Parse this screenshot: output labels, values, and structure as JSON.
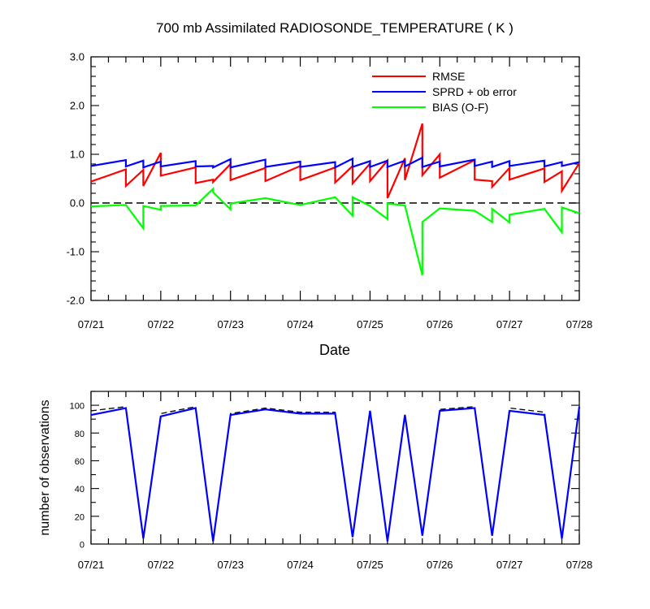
{
  "title": "700 mb Assimilated RADIOSONDE_TEMPERATURE ( K )",
  "colors": {
    "rmse": "#ff0000",
    "sprd": "#0000ff",
    "bias": "#00ff00",
    "obs_used": "#0000ff",
    "obs_possible": "#000000",
    "zero_line": "#000000"
  },
  "chart_data": [
    {
      "type": "line",
      "xlabel": "Date",
      "ylabel": "",
      "ylim": [
        -2.0,
        3.0
      ],
      "xlim": [
        0,
        7
      ],
      "x_tick_labels": [
        "07/21",
        "07/22",
        "07/23",
        "07/24",
        "07/25",
        "07/26",
        "07/27",
        "07/28"
      ],
      "y_tick_labels": [
        "-2.0",
        "-1.0",
        "0.0",
        "1.0",
        "2.0",
        "3.0"
      ],
      "legend_position": "top-right",
      "reference_line": {
        "y": 0.0,
        "style": "dashed"
      },
      "series": [
        {
          "name": "RMSE",
          "color": "#ff0000",
          "points": [
            [
              0,
              0.44
            ],
            [
              0.5,
              0.69
            ],
            [
              0.5,
              0.35
            ],
            [
              0.75,
              0.68
            ],
            [
              0.75,
              0.35
            ],
            [
              1.0,
              1.03
            ],
            [
              1.0,
              0.56
            ],
            [
              1.5,
              0.73
            ],
            [
              1.5,
              0.41
            ],
            [
              1.75,
              0.48
            ],
            [
              1.75,
              0.43
            ],
            [
              2.0,
              0.8
            ],
            [
              2.0,
              0.47
            ],
            [
              2.5,
              0.72
            ],
            [
              2.5,
              0.45
            ],
            [
              3.0,
              0.76
            ],
            [
              3.0,
              0.47
            ],
            [
              3.5,
              0.73
            ],
            [
              3.5,
              0.42
            ],
            [
              3.75,
              0.76
            ],
            [
              3.75,
              0.4
            ],
            [
              4.0,
              0.81
            ],
            [
              4.0,
              0.45
            ],
            [
              4.25,
              0.87
            ],
            [
              4.25,
              0.1
            ],
            [
              4.5,
              0.92
            ],
            [
              4.5,
              0.47
            ],
            [
              4.75,
              1.63
            ],
            [
              4.75,
              0.57
            ],
            [
              5.0,
              1.0
            ],
            [
              5.0,
              0.52
            ],
            [
              5.5,
              0.88
            ],
            [
              5.5,
              0.48
            ],
            [
              5.75,
              0.45
            ],
            [
              5.75,
              0.33
            ],
            [
              6.0,
              0.72
            ],
            [
              6.0,
              0.48
            ],
            [
              6.5,
              0.71
            ],
            [
              6.5,
              0.43
            ],
            [
              6.75,
              0.65
            ],
            [
              6.75,
              0.25
            ],
            [
              7.0,
              0.82
            ]
          ]
        },
        {
          "name": "SPRD + ob error",
          "color": "#0000ff",
          "points": [
            [
              0,
              0.76
            ],
            [
              0.5,
              0.88
            ],
            [
              0.5,
              0.75
            ],
            [
              0.75,
              0.87
            ],
            [
              0.75,
              0.73
            ],
            [
              1.0,
              0.85
            ],
            [
              1.0,
              0.75
            ],
            [
              1.5,
              0.86
            ],
            [
              1.5,
              0.75
            ],
            [
              1.75,
              0.76
            ],
            [
              1.75,
              0.73
            ],
            [
              2.0,
              0.9
            ],
            [
              2.0,
              0.73
            ],
            [
              2.5,
              0.89
            ],
            [
              2.5,
              0.74
            ],
            [
              3.0,
              0.85
            ],
            [
              3.0,
              0.74
            ],
            [
              3.5,
              0.84
            ],
            [
              3.5,
              0.73
            ],
            [
              3.75,
              0.91
            ],
            [
              3.75,
              0.74
            ],
            [
              4.0,
              0.86
            ],
            [
              4.0,
              0.74
            ],
            [
              4.25,
              0.87
            ],
            [
              4.25,
              0.74
            ],
            [
              4.5,
              0.87
            ],
            [
              4.5,
              0.75
            ],
            [
              4.75,
              0.93
            ],
            [
              4.75,
              0.74
            ],
            [
              5.0,
              0.85
            ],
            [
              5.0,
              0.75
            ],
            [
              5.5,
              0.89
            ],
            [
              5.5,
              0.76
            ],
            [
              5.75,
              0.85
            ],
            [
              5.75,
              0.74
            ],
            [
              6.0,
              0.86
            ],
            [
              6.0,
              0.76
            ],
            [
              6.5,
              0.87
            ],
            [
              6.5,
              0.75
            ],
            [
              6.75,
              0.84
            ],
            [
              6.75,
              0.76
            ],
            [
              7.0,
              0.84
            ]
          ]
        },
        {
          "name": "BIAS (O-F)",
          "color": "#00ff00",
          "points": [
            [
              0,
              -0.07
            ],
            [
              0.5,
              -0.04
            ],
            [
              0.75,
              -0.52
            ],
            [
              0.75,
              -0.06
            ],
            [
              1.0,
              -0.14
            ],
            [
              1.0,
              -0.06
            ],
            [
              1.5,
              -0.05
            ],
            [
              1.75,
              0.29
            ],
            [
              1.75,
              0.22
            ],
            [
              2.0,
              -0.13
            ],
            [
              2.0,
              -0.01
            ],
            [
              2.5,
              0.1
            ],
            [
              3.0,
              -0.04
            ],
            [
              3.5,
              0.12
            ],
            [
              3.75,
              -0.26
            ],
            [
              3.75,
              0.12
            ],
            [
              4.0,
              -0.06
            ],
            [
              4.25,
              -0.33
            ],
            [
              4.25,
              -0.01
            ],
            [
              4.5,
              -0.05
            ],
            [
              4.75,
              -1.48
            ],
            [
              4.75,
              -0.39
            ],
            [
              5.0,
              -0.11
            ],
            [
              5.5,
              -0.16
            ],
            [
              5.75,
              -0.39
            ],
            [
              5.75,
              -0.12
            ],
            [
              6.0,
              -0.4
            ],
            [
              6.0,
              -0.24
            ],
            [
              6.5,
              -0.12
            ],
            [
              6.75,
              -0.6
            ],
            [
              6.75,
              -0.09
            ],
            [
              7.0,
              -0.21
            ]
          ]
        }
      ]
    },
    {
      "type": "line",
      "xlabel": "",
      "ylabel": "number of observations",
      "ylim": [
        0,
        110
      ],
      "xlim": [
        0,
        7
      ],
      "x_tick_labels": [
        "07/21",
        "07/22",
        "07/23",
        "07/24",
        "07/25",
        "07/26",
        "07/27",
        "07/28"
      ],
      "y_tick_labels": [
        "0",
        "20",
        "40",
        "60",
        "80",
        "100"
      ],
      "series": [
        {
          "color": "#000000",
          "style": "dashed",
          "points": [
            [
              0,
              96
            ],
            [
              0.5,
              99
            ],
            [
              0.75,
              4
            ],
            [
              1.0,
              94
            ],
            [
              1.5,
              99
            ],
            [
              1.75,
              2
            ],
            [
              2.0,
              94
            ],
            [
              2.5,
              98
            ],
            [
              3.0,
              95
            ],
            [
              3.5,
              95
            ],
            [
              3.75,
              5
            ],
            [
              4.0,
              96
            ],
            [
              4.25,
              2
            ],
            [
              4.5,
              94
            ],
            [
              4.75,
              6
            ],
            [
              5.0,
              97
            ],
            [
              5.5,
              99
            ],
            [
              5.75,
              6
            ],
            [
              6.0,
              98
            ],
            [
              6.5,
              95
            ],
            [
              6.75,
              4
            ],
            [
              7.0,
              99
            ]
          ]
        },
        {
          "color": "#0000ff",
          "style": "solid",
          "points": [
            [
              0,
              93
            ],
            [
              0.5,
              98
            ],
            [
              0.75,
              4
            ],
            [
              1.0,
              92
            ],
            [
              1.5,
              98
            ],
            [
              1.75,
              2
            ],
            [
              2.0,
              93
            ],
            [
              2.5,
              97
            ],
            [
              3.0,
              94
            ],
            [
              3.5,
              94
            ],
            [
              3.75,
              5
            ],
            [
              4.0,
              96
            ],
            [
              4.25,
              2
            ],
            [
              4.5,
              93
            ],
            [
              4.75,
              6
            ],
            [
              5.0,
              96
            ],
            [
              5.5,
              98
            ],
            [
              5.75,
              6
            ],
            [
              6.0,
              96
            ],
            [
              6.5,
              93
            ],
            [
              6.75,
              4
            ],
            [
              7.0,
              99
            ]
          ]
        }
      ]
    }
  ]
}
